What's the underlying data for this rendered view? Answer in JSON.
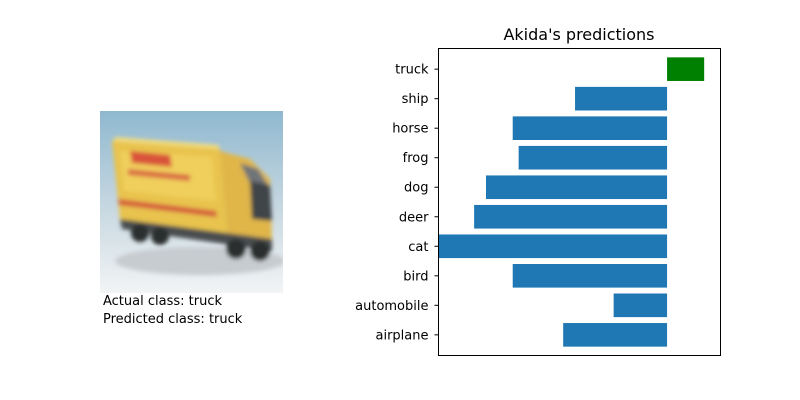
{
  "image_panel": {
    "actual_label": "Actual class:",
    "actual_value": "truck",
    "predicted_label": "Predicted class:",
    "predicted_value": "truck"
  },
  "chart_data": {
    "type": "bar",
    "orientation": "horizontal",
    "title": "Akida's predictions",
    "categories": [
      "airplane",
      "automobile",
      "bird",
      "cat",
      "deer",
      "dog",
      "frog",
      "horse",
      "ship",
      "truck"
    ],
    "values": [
      -3.5,
      -1.8,
      -5.2,
      -7.7,
      -6.5,
      -6.1,
      -5.0,
      -5.2,
      -3.1,
      1.25
    ],
    "xlim": [
      -7.7,
      1.8
    ],
    "bar_colors": [
      "#1f77b4",
      "#1f77b4",
      "#1f77b4",
      "#1f77b4",
      "#1f77b4",
      "#1f77b4",
      "#1f77b4",
      "#1f77b4",
      "#1f77b4",
      "#008000"
    ],
    "x_ticks_visible": false,
    "grid": false
  }
}
